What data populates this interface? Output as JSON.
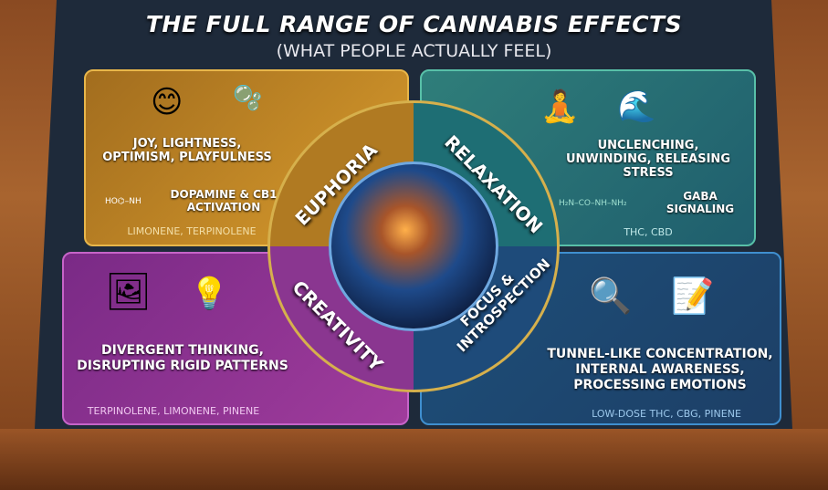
{
  "title": "THE FULL RANGE OF CANNABIS EFFECTS",
  "subtitle": "(WHAT PEOPLE ACTUALLY FEEL)",
  "quadrants": {
    "euphoria": {
      "label": "EUPHORIA",
      "feelings": "JOY, LIGHTNESS, OPTIMISM, PLAYFULNESS",
      "mechanism": "DOPAMINE & CB1 ACTIVATION",
      "compounds": "LIMONENE, TERPINOLENE",
      "color": "#c58a28"
    },
    "relaxation": {
      "label": "RELAXATION",
      "feelings": "UNCLENCHING, UNWINDING, RELEASING STRESS",
      "mechanism": "GABA SIGNALING",
      "compounds": "THC, CBD",
      "color": "#2a7476"
    },
    "creativity": {
      "label": "CREATIVITY",
      "feelings": "DIVERGENT THINKING, DISRUPTING RIGID PATTERNS",
      "compounds": "TERPINOLENE, LIMONENE, PINENE",
      "color": "#90348f"
    },
    "focus": {
      "label": "FOCUS & INTROSPECTION",
      "feelings": "TUNNEL-LIKE CONCENTRATION, INTERNAL AWARENESS, PROCESSING EMOTIONS",
      "compounds": "LOW-DOSE THC, CBG, PINENE",
      "color": "#1d4a74"
    }
  },
  "icons": [
    "smiley-icon",
    "bubbles-icon",
    "meditation-icon",
    "wave-icon",
    "easel-icon",
    "lightbulb-icon",
    "magnifier-icon",
    "notepad-icon",
    "brain-head-icon"
  ]
}
